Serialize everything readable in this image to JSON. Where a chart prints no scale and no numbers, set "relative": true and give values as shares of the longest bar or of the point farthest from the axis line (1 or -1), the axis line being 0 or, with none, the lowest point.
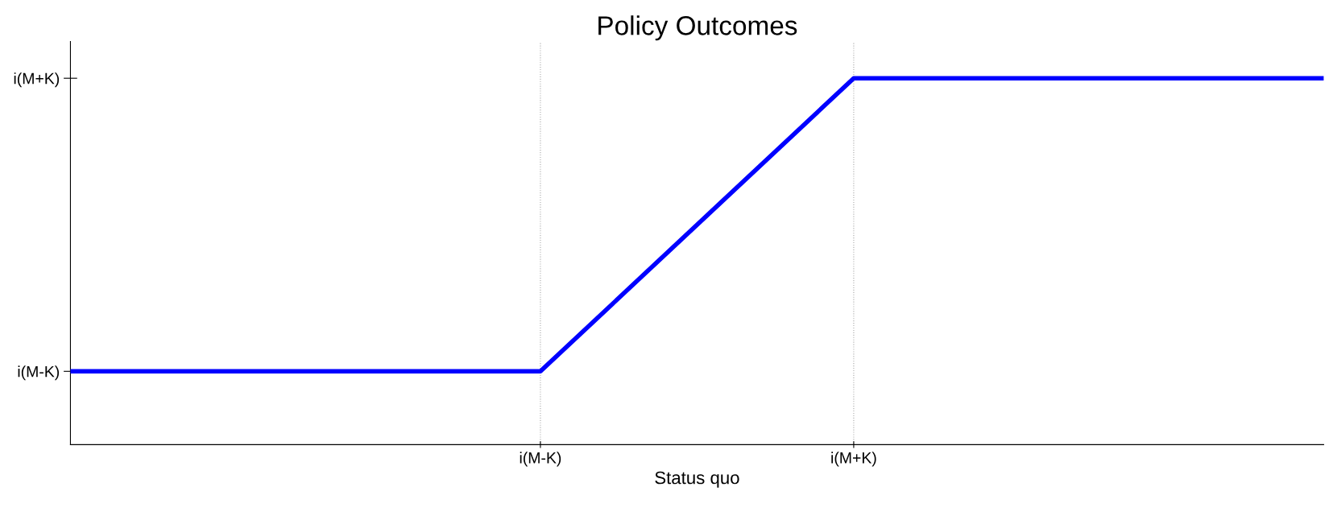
{
  "chart_data": {
    "type": "line",
    "title": "Policy Outcomes",
    "xlabel": "Status quo",
    "relative": true,
    "categories": [
      null,
      null,
      null,
      "i(M-K)",
      null,
      "i(M+K)",
      null,
      null,
      null
    ],
    "series": [
      {
        "color": "#0000ff",
        "values": [
          0.2,
          0.2,
          0.2,
          0.2,
          0.6,
          1,
          1,
          1,
          1
        ]
      }
    ],
    "ref_lines": [
      {
        "axis": "y",
        "value": 0.2,
        "label": "i(M-K)"
      },
      {
        "axis": "y",
        "value": 1,
        "label": "i(M+K)"
      }
    ],
    "grid": "x",
    "legend": false,
    "marker": "none",
    "line_style": "solid"
  }
}
